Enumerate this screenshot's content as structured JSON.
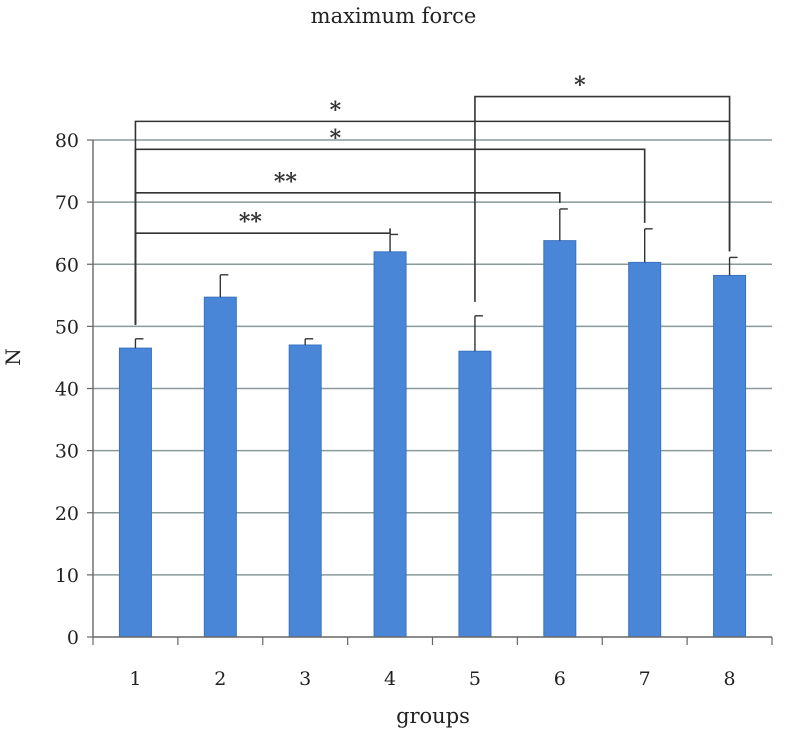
{
  "chart_data": {
    "type": "bar",
    "title": "maximum force",
    "xlabel": "groups",
    "ylabel": "N",
    "ylim": [
      0,
      80
    ],
    "yticks": [
      0,
      10,
      20,
      30,
      40,
      50,
      60,
      70,
      80
    ],
    "grid": true,
    "categories": [
      "1",
      "2",
      "3",
      "4",
      "5",
      "6",
      "7",
      "8"
    ],
    "values": [
      46.5,
      54.7,
      47.0,
      62.0,
      46.0,
      63.8,
      60.3,
      58.2
    ],
    "errors": [
      1.5,
      3.6,
      1.0,
      2.8,
      5.7,
      5.1,
      5.4,
      2.9
    ],
    "significance": [
      {
        "from": "1",
        "to": "4",
        "label": "**",
        "level": 65
      },
      {
        "from": "1",
        "to": "6",
        "label": "**",
        "level": 71.5
      },
      {
        "from": "1",
        "to": "7",
        "label": "*",
        "level": 78.5
      },
      {
        "from": "1",
        "to": "8",
        "label": "*",
        "level": 83
      },
      {
        "from": "5",
        "to": "8",
        "label": "*",
        "level": 87
      }
    ],
    "colors": {
      "bar": "#4a86d8",
      "grid": "#8a9a9a",
      "bracket": "#333333"
    }
  }
}
